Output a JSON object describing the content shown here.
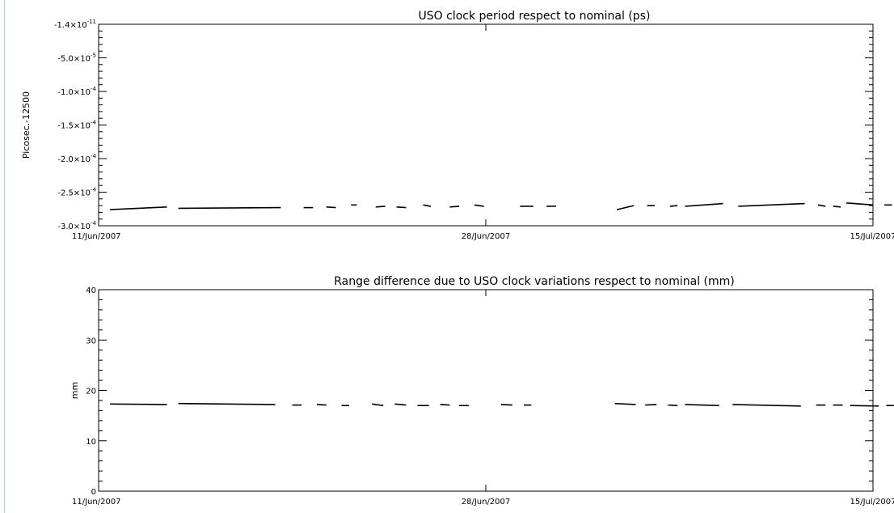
{
  "chart_data": [
    {
      "type": "line",
      "title": "USO clock period respect to nominal (ps)",
      "ylabel": "Picosec.-12500",
      "xlabel": "",
      "x_ticks": [
        {
          "date": "2007-06-11",
          "label": "11/Jun/2007"
        },
        {
          "date": "2007-06-28",
          "label": "28/Jun/2007"
        },
        {
          "date": "2007-07-15",
          "label": "15/Jul/2007"
        }
      ],
      "xlim": [
        "2007-06-11",
        "2007-07-15"
      ],
      "ylim": [
        -0.0003,
        -1.4e-11
      ],
      "y_ticks": [
        {
          "value": -1.4e-11,
          "mantissa": "-1.4×10",
          "exp": "-11"
        },
        {
          "value": -5e-05,
          "mantissa": "-5.0×10",
          "exp": "-5"
        },
        {
          "value": -0.0001,
          "mantissa": "-1.0×10",
          "exp": "-4"
        },
        {
          "value": -0.00015,
          "mantissa": "-1.5×10",
          "exp": "-4"
        },
        {
          "value": -0.0002,
          "mantissa": "-2.0×10",
          "exp": "-4"
        },
        {
          "value": -0.00025,
          "mantissa": "-2.5×10",
          "exp": "-4"
        },
        {
          "value": -0.0003,
          "mantissa": "-3.0×10",
          "exp": "-4"
        }
      ],
      "series": [
        {
          "segments": [
            {
              "x": [
                "2007-06-11T12:00",
                "2007-06-14T00:00"
              ],
              "y": [
                -0.000276,
                -0.000272
              ]
            },
            {
              "x": [
                "2007-06-14T12:00",
                "2007-06-19T00:00"
              ],
              "y": [
                -0.000274,
                -0.000273
              ]
            },
            {
              "x": [
                "2007-06-20T00:00",
                "2007-06-20T10:00"
              ],
              "y": [
                -0.000273,
                -0.000273
              ]
            },
            {
              "x": [
                "2007-06-21T00:00",
                "2007-06-21T10:00"
              ],
              "y": [
                -0.000272,
                -0.000273
              ]
            },
            {
              "x": [
                "2007-06-22T02:00",
                "2007-06-22T08:00"
              ],
              "y": [
                -0.000269,
                -0.000269
              ]
            },
            {
              "x": [
                "2007-06-23T04:00",
                "2007-06-23T14:00"
              ],
              "y": [
                -0.000272,
                -0.000271
              ]
            },
            {
              "x": [
                "2007-06-24T02:00",
                "2007-06-24T12:00"
              ],
              "y": [
                -0.000272,
                -0.000273
              ]
            },
            {
              "x": [
                "2007-06-25T06:00",
                "2007-06-25T14:00"
              ],
              "y": [
                -0.000269,
                -0.000271
              ]
            },
            {
              "x": [
                "2007-06-26T10:00",
                "2007-06-26T20:00"
              ],
              "y": [
                -0.000272,
                -0.000271
              ]
            },
            {
              "x": [
                "2007-06-27T12:00",
                "2007-06-27T22:00"
              ],
              "y": [
                -0.000269,
                -0.000271
              ]
            },
            {
              "x": [
                "2007-06-29T12:00",
                "2007-06-30T02:00"
              ],
              "y": [
                -0.000271,
                -0.000271
              ]
            },
            {
              "x": [
                "2007-06-30T16:00",
                "2007-07-01T02:00"
              ],
              "y": [
                -0.000271,
                -0.000271
              ]
            },
            {
              "x": [
                "2007-07-03T18:00",
                "2007-07-04T12:00"
              ],
              "y": [
                -0.000276,
                -0.00027
              ]
            },
            {
              "x": [
                "2007-07-05T02:00",
                "2007-07-05T10:00"
              ],
              "y": [
                -0.00027,
                -0.00027
              ]
            },
            {
              "x": [
                "2007-07-06T02:00",
                "2007-07-06T10:00"
              ],
              "y": [
                -0.000271,
                -0.00027
              ]
            },
            {
              "x": [
                "2007-07-06T18:00",
                "2007-07-08T10:00"
              ],
              "y": [
                -0.000271,
                -0.000267
              ]
            },
            {
              "x": [
                "2007-07-09T02:00",
                "2007-07-12T00:00"
              ],
              "y": [
                -0.000271,
                -0.000267
              ]
            },
            {
              "x": [
                "2007-07-12T14:00",
                "2007-07-12T22:00"
              ],
              "y": [
                -0.000269,
                -0.000271
              ]
            },
            {
              "x": [
                "2007-07-13T06:00",
                "2007-07-13T14:00"
              ],
              "y": [
                -0.000271,
                -0.000272
              ]
            },
            {
              "x": [
                "2007-07-13T20:00",
                "2007-07-15T00:00"
              ],
              "y": [
                -0.000266,
                -0.000269
              ]
            },
            {
              "x": [
                "2007-07-15T12:00",
                "2007-07-15T20:00"
              ],
              "y": [
                -0.000269,
                -0.000269
              ]
            }
          ]
        }
      ]
    },
    {
      "type": "line",
      "title": "Range difference due to USO clock variations respect to nominal (mm)",
      "ylabel": "mm",
      "xlabel": "",
      "x_ticks": [
        {
          "date": "2007-06-11",
          "label": "11/Jun/2007"
        },
        {
          "date": "2007-06-28",
          "label": "28/Jun/2007"
        },
        {
          "date": "2007-07-15",
          "label": "15/Jul/2007"
        }
      ],
      "xlim": [
        "2007-06-11",
        "2007-07-15"
      ],
      "ylim": [
        0,
        40
      ],
      "y_ticks": [
        {
          "value": 0,
          "mantissa": "0",
          "exp": ""
        },
        {
          "value": 10,
          "mantissa": "10",
          "exp": ""
        },
        {
          "value": 20,
          "mantissa": "20",
          "exp": ""
        },
        {
          "value": 30,
          "mantissa": "30",
          "exp": ""
        },
        {
          "value": 40,
          "mantissa": "40",
          "exp": ""
        }
      ],
      "series": [
        {
          "segments": [
            {
              "x": [
                "2007-06-11T12:00",
                "2007-06-14T00:00"
              ],
              "y": [
                17.3,
                17.2
              ]
            },
            {
              "x": [
                "2007-06-14T12:00",
                "2007-06-18T18:00"
              ],
              "y": [
                17.4,
                17.2
              ]
            },
            {
              "x": [
                "2007-06-19T12:00",
                "2007-06-19T22:00"
              ],
              "y": [
                17.1,
                17.1
              ]
            },
            {
              "x": [
                "2007-06-20T14:00",
                "2007-06-21T00:00"
              ],
              "y": [
                17.2,
                17.1
              ]
            },
            {
              "x": [
                "2007-06-21T16:00",
                "2007-06-22T00:00"
              ],
              "y": [
                17.0,
                17.0
              ]
            },
            {
              "x": [
                "2007-06-23T00:00",
                "2007-06-23T12:00"
              ],
              "y": [
                17.3,
                17.0
              ]
            },
            {
              "x": [
                "2007-06-24T00:00",
                "2007-06-24T12:00"
              ],
              "y": [
                17.3,
                17.1
              ]
            },
            {
              "x": [
                "2007-06-25T00:00",
                "2007-06-25T12:00"
              ],
              "y": [
                17.0,
                17.0
              ]
            },
            {
              "x": [
                "2007-06-26T00:00",
                "2007-06-26T10:00"
              ],
              "y": [
                17.2,
                17.1
              ]
            },
            {
              "x": [
                "2007-06-26T20:00",
                "2007-06-27T06:00"
              ],
              "y": [
                17.0,
                17.0
              ]
            },
            {
              "x": [
                "2007-06-28T16:00",
                "2007-06-29T04:00"
              ],
              "y": [
                17.2,
                17.1
              ]
            },
            {
              "x": [
                "2007-06-29T16:00",
                "2007-06-30T00:00"
              ],
              "y": [
                17.1,
                17.1
              ]
            },
            {
              "x": [
                "2007-07-03T16:00",
                "2007-07-04T14:00"
              ],
              "y": [
                17.4,
                17.2
              ]
            },
            {
              "x": [
                "2007-07-05T00:00",
                "2007-07-05T12:00"
              ],
              "y": [
                17.1,
                17.2
              ]
            },
            {
              "x": [
                "2007-07-06T00:00",
                "2007-07-06T10:00"
              ],
              "y": [
                17.1,
                17.0
              ]
            },
            {
              "x": [
                "2007-07-06T18:00",
                "2007-07-08T06:00"
              ],
              "y": [
                17.2,
                17.0
              ]
            },
            {
              "x": [
                "2007-07-08T20:00",
                "2007-07-11T20:00"
              ],
              "y": [
                17.2,
                16.9
              ]
            },
            {
              "x": [
                "2007-07-12T12:00",
                "2007-07-12T22:00"
              ],
              "y": [
                17.1,
                17.1
              ]
            },
            {
              "x": [
                "2007-07-13T06:00",
                "2007-07-13T16:00"
              ],
              "y": [
                17.1,
                17.1
              ]
            },
            {
              "x": [
                "2007-07-14T00:00",
                "2007-07-15T06:00"
              ],
              "y": [
                17.0,
                16.9
              ]
            },
            {
              "x": [
                "2007-07-15T14:00",
                "2007-07-15T22:00"
              ],
              "y": [
                17.0,
                17.0
              ]
            }
          ]
        }
      ]
    }
  ]
}
